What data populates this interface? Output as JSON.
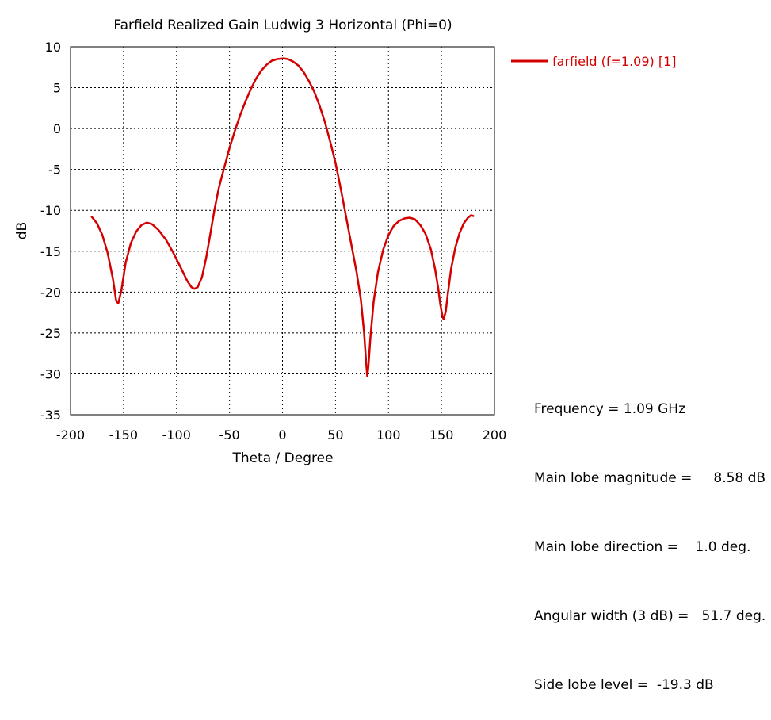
{
  "chart_data": {
    "type": "line",
    "title": "Farfield Realized Gain Ludwig 3 Horizontal (Phi=0)",
    "xlabel": "Theta / Degree",
    "ylabel": "dB",
    "xlim": [
      -200,
      200
    ],
    "ylim": [
      -35,
      10
    ],
    "xticks": [
      -200,
      -150,
      -100,
      -50,
      0,
      50,
      100,
      150,
      200
    ],
    "yticks": [
      10,
      5,
      0,
      -5,
      -10,
      -15,
      -20,
      -25,
      -30,
      -35
    ],
    "grid": true,
    "legend_position": "top-right",
    "series": [
      {
        "name": "farfield (f=1.09) [1]",
        "color": "#d40000",
        "points": [
          [
            -180,
            -10.8
          ],
          [
            -175,
            -11.6
          ],
          [
            -170,
            -13.0
          ],
          [
            -165,
            -15.2
          ],
          [
            -160,
            -18.4
          ],
          [
            -157,
            -21.0
          ],
          [
            -155,
            -21.4
          ],
          [
            -152,
            -19.8
          ],
          [
            -148,
            -16.4
          ],
          [
            -143,
            -14.0
          ],
          [
            -138,
            -12.6
          ],
          [
            -133,
            -11.8
          ],
          [
            -128,
            -11.5
          ],
          [
            -123,
            -11.7
          ],
          [
            -117,
            -12.4
          ],
          [
            -110,
            -13.6
          ],
          [
            -103,
            -15.2
          ],
          [
            -96,
            -17.0
          ],
          [
            -90,
            -18.6
          ],
          [
            -86,
            -19.4
          ],
          [
            -83,
            -19.6
          ],
          [
            -80,
            -19.4
          ],
          [
            -76,
            -18.2
          ],
          [
            -72,
            -15.8
          ],
          [
            -68,
            -12.8
          ],
          [
            -64,
            -9.8
          ],
          [
            -60,
            -7.2
          ],
          [
            -55,
            -4.8
          ],
          [
            -50,
            -2.4
          ],
          [
            -45,
            -0.3
          ],
          [
            -40,
            1.6
          ],
          [
            -35,
            3.3
          ],
          [
            -30,
            4.8
          ],
          [
            -25,
            6.1
          ],
          [
            -20,
            7.1
          ],
          [
            -15,
            7.8
          ],
          [
            -10,
            8.3
          ],
          [
            -5,
            8.5
          ],
          [
            1,
            8.58
          ],
          [
            5,
            8.5
          ],
          [
            10,
            8.2
          ],
          [
            15,
            7.7
          ],
          [
            20,
            6.9
          ],
          [
            25,
            5.8
          ],
          [
            30,
            4.5
          ],
          [
            35,
            2.8
          ],
          [
            40,
            0.8
          ],
          [
            45,
            -1.6
          ],
          [
            50,
            -4.2
          ],
          [
            55,
            -7.4
          ],
          [
            60,
            -10.8
          ],
          [
            65,
            -14.2
          ],
          [
            70,
            -17.6
          ],
          [
            74,
            -21.0
          ],
          [
            77,
            -25.0
          ],
          [
            79,
            -28.8
          ],
          [
            80,
            -30.3
          ],
          [
            81,
            -29.2
          ],
          [
            83,
            -25.5
          ],
          [
            86,
            -21.2
          ],
          [
            90,
            -17.6
          ],
          [
            95,
            -14.8
          ],
          [
            100,
            -13.0
          ],
          [
            105,
            -11.9
          ],
          [
            110,
            -11.3
          ],
          [
            115,
            -11.0
          ],
          [
            120,
            -10.9
          ],
          [
            125,
            -11.1
          ],
          [
            130,
            -11.8
          ],
          [
            135,
            -12.9
          ],
          [
            140,
            -14.8
          ],
          [
            144,
            -17.2
          ],
          [
            147,
            -19.6
          ],
          [
            149,
            -21.6
          ],
          [
            151,
            -23.0
          ],
          [
            152,
            -23.3
          ],
          [
            154,
            -22.4
          ],
          [
            156,
            -20.2
          ],
          [
            159,
            -17.2
          ],
          [
            163,
            -14.6
          ],
          [
            167,
            -12.8
          ],
          [
            171,
            -11.6
          ],
          [
            175,
            -10.9
          ],
          [
            178,
            -10.6
          ],
          [
            180,
            -10.7
          ]
        ]
      }
    ]
  },
  "info": {
    "frequency": "Frequency = 1.09 GHz",
    "main_lobe_magnitude": "Main lobe magnitude =     8.58 dB",
    "main_lobe_direction": "Main lobe direction =    1.0 deg.",
    "angular_width": "Angular width (3 dB) =   51.7 deg.",
    "side_lobe_level": "Side lobe level =  -19.3 dB"
  }
}
